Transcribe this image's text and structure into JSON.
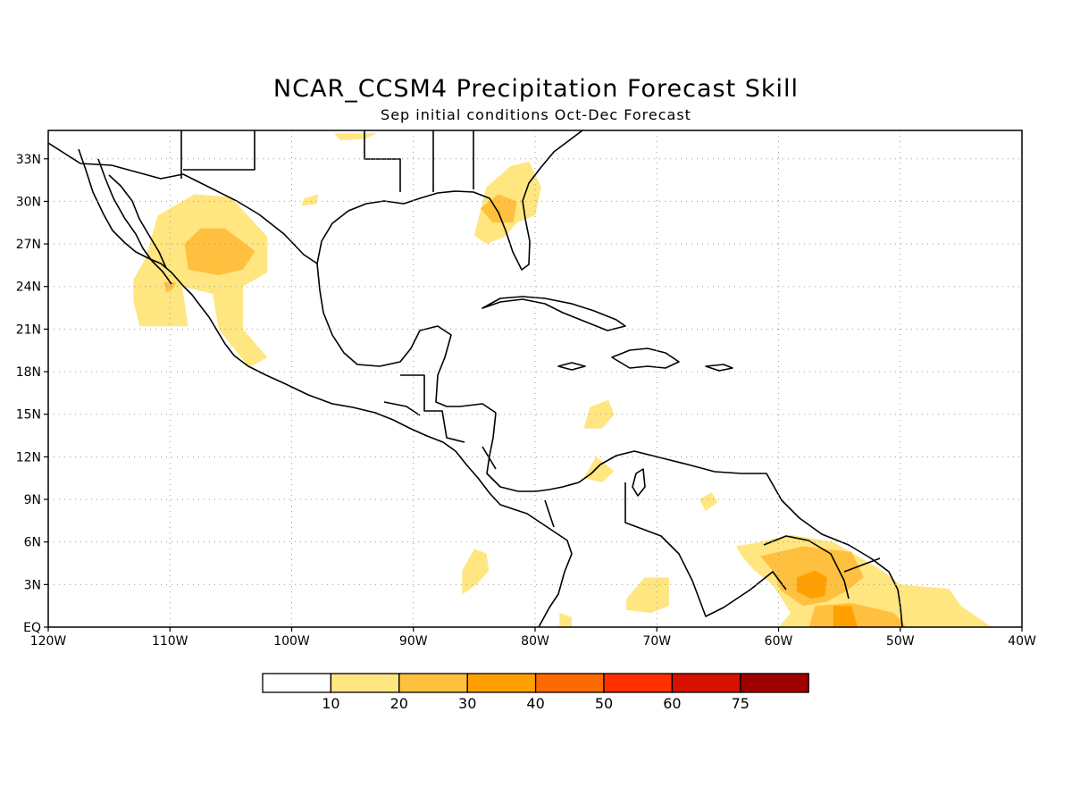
{
  "title": "NCAR_CCSM4 Precipitation Forecast Skill",
  "subtitle": "Sep initial conditions  Oct-Dec Forecast",
  "map": {
    "lon_range": [
      -120,
      -40
    ],
    "lat_range": [
      0,
      35
    ],
    "lon_tick_labels": [
      "120W",
      "110W",
      "100W",
      "90W",
      "80W",
      "70W",
      "60W",
      "50W",
      "40W"
    ],
    "lat_tick_labels": [
      "EQ",
      "3N",
      "6N",
      "9N",
      "12N",
      "15N",
      "18N",
      "21N",
      "24N",
      "27N",
      "30N",
      "33N"
    ],
    "grid": "dotted"
  },
  "colorbar": {
    "labels": [
      "10",
      "20",
      "30",
      "40",
      "50",
      "60",
      "75"
    ],
    "colors": [
      "#ffffff",
      "#ffe680",
      "#ffc040",
      "#ffa000",
      "#ff6a00",
      "#ff3000",
      "#d81000",
      "#a00000"
    ]
  },
  "skill_regions": [
    {
      "level": 1,
      "pts": [
        [
          -113,
          24.5
        ],
        [
          -112,
          26
        ],
        [
          -111,
          29
        ],
        [
          -108,
          30.5
        ],
        [
          -105,
          30.3
        ],
        [
          -102,
          27.5
        ],
        [
          -102,
          25
        ],
        [
          -104,
          24
        ],
        [
          -104,
          21
        ],
        [
          -102,
          19
        ],
        [
          -103.5,
          18.3
        ],
        [
          -106,
          21
        ],
        [
          -106.5,
          23.5
        ],
        [
          -109,
          24
        ],
        [
          -108.5,
          21.2
        ],
        [
          -112.5,
          21.2
        ],
        [
          -113,
          23
        ]
      ]
    },
    {
      "level": 2,
      "pts": [
        [
          -108.8,
          27
        ],
        [
          -107.5,
          28.1
        ],
        [
          -105.5,
          28.1
        ],
        [
          -103,
          26.5
        ],
        [
          -104,
          25.2
        ],
        [
          -106,
          24.8
        ],
        [
          -108.5,
          25.2
        ]
      ]
    },
    {
      "level": 2,
      "pts": [
        [
          -110.5,
          24.3
        ],
        [
          -109.5,
          24.3
        ],
        [
          -109.8,
          23.8
        ],
        [
          -110.3,
          23.6
        ]
      ]
    },
    {
      "level": 1,
      "pts": [
        [
          -99,
          30.2
        ],
        [
          -97.8,
          30.5
        ],
        [
          -98,
          29.8
        ],
        [
          -99.2,
          29.7
        ]
      ]
    },
    {
      "level": 1,
      "pts": [
        [
          -96.5,
          34.8
        ],
        [
          -93,
          34.8
        ],
        [
          -94,
          34.4
        ],
        [
          -96,
          34.3
        ]
      ]
    },
    {
      "level": 1,
      "pts": [
        [
          -85,
          27.6
        ],
        [
          -84,
          31
        ],
        [
          -82,
          32.5
        ],
        [
          -80.5,
          32.8
        ],
        [
          -79.5,
          31
        ],
        [
          -80,
          29
        ],
        [
          -81.5,
          28.5
        ],
        [
          -82.5,
          27.5
        ],
        [
          -84,
          27
        ]
      ]
    },
    {
      "level": 2,
      "pts": [
        [
          -84.5,
          29.5
        ],
        [
          -83,
          30.5
        ],
        [
          -81.5,
          30
        ],
        [
          -81.8,
          28.5
        ],
        [
          -83.5,
          28.5
        ]
      ]
    },
    {
      "level": 1,
      "pts": [
        [
          -75.5,
          15.5
        ],
        [
          -74,
          16
        ],
        [
          -73.5,
          15
        ],
        [
          -74.5,
          14
        ],
        [
          -76,
          14
        ]
      ]
    },
    {
      "level": 1,
      "pts": [
        [
          -76,
          10.5
        ],
        [
          -75,
          12
        ],
        [
          -73.5,
          11
        ],
        [
          -74.5,
          10.2
        ]
      ]
    },
    {
      "level": 1,
      "pts": [
        [
          -66.5,
          9
        ],
        [
          -65.5,
          9.5
        ],
        [
          -65,
          8.8
        ],
        [
          -66,
          8.2
        ]
      ]
    },
    {
      "level": 1,
      "pts": [
        [
          -86,
          4
        ],
        [
          -85,
          5.5
        ],
        [
          -84,
          5.2
        ],
        [
          -83.8,
          4
        ],
        [
          -84.8,
          3
        ],
        [
          -86,
          2.3
        ]
      ]
    },
    {
      "level": 1,
      "pts": [
        [
          -72.5,
          2
        ],
        [
          -71,
          3.5
        ],
        [
          -69,
          3.5
        ],
        [
          -69,
          1.5
        ],
        [
          -70.5,
          1
        ],
        [
          -72.5,
          1.2
        ]
      ]
    },
    {
      "level": 1,
      "pts": [
        [
          -78,
          1
        ],
        [
          -77,
          0.7
        ],
        [
          -77,
          0
        ],
        [
          -78,
          0
        ]
      ]
    },
    {
      "level": 1,
      "pts": [
        [
          -63.5,
          5.7
        ],
        [
          -61.5,
          6
        ],
        [
          -59,
          6.5
        ],
        [
          -55.5,
          6
        ],
        [
          -51.5,
          4
        ],
        [
          -50,
          3
        ],
        [
          -46,
          2.7
        ],
        [
          -45,
          1.5
        ],
        [
          -42.5,
          0
        ],
        [
          -60,
          0
        ],
        [
          -59,
          1
        ],
        [
          -60.5,
          3
        ],
        [
          -62,
          4
        ],
        [
          -63,
          5
        ]
      ]
    },
    {
      "level": 2,
      "pts": [
        [
          -61.5,
          5
        ],
        [
          -58,
          5.7
        ],
        [
          -54,
          5.3
        ],
        [
          -53,
          3.5
        ],
        [
          -54.5,
          2.5
        ],
        [
          -56,
          1.8
        ],
        [
          -58,
          1.5
        ],
        [
          -59.8,
          2.6
        ],
        [
          -60.5,
          4
        ]
      ]
    },
    {
      "level": 2,
      "pts": [
        [
          -57,
          1.5
        ],
        [
          -54,
          1.7
        ],
        [
          -50.5,
          1
        ],
        [
          -49.5,
          0
        ],
        [
          -57.5,
          0
        ]
      ]
    },
    {
      "level": 3,
      "pts": [
        [
          -58.5,
          3.5
        ],
        [
          -57,
          4
        ],
        [
          -56,
          3.5
        ],
        [
          -56.2,
          2.2
        ],
        [
          -57.3,
          2
        ],
        [
          -58.5,
          2.5
        ]
      ]
    },
    {
      "level": 3,
      "pts": [
        [
          -55.5,
          1.5
        ],
        [
          -54,
          1.5
        ],
        [
          -53.5,
          0
        ],
        [
          -55.5,
          0
        ]
      ]
    }
  ]
}
